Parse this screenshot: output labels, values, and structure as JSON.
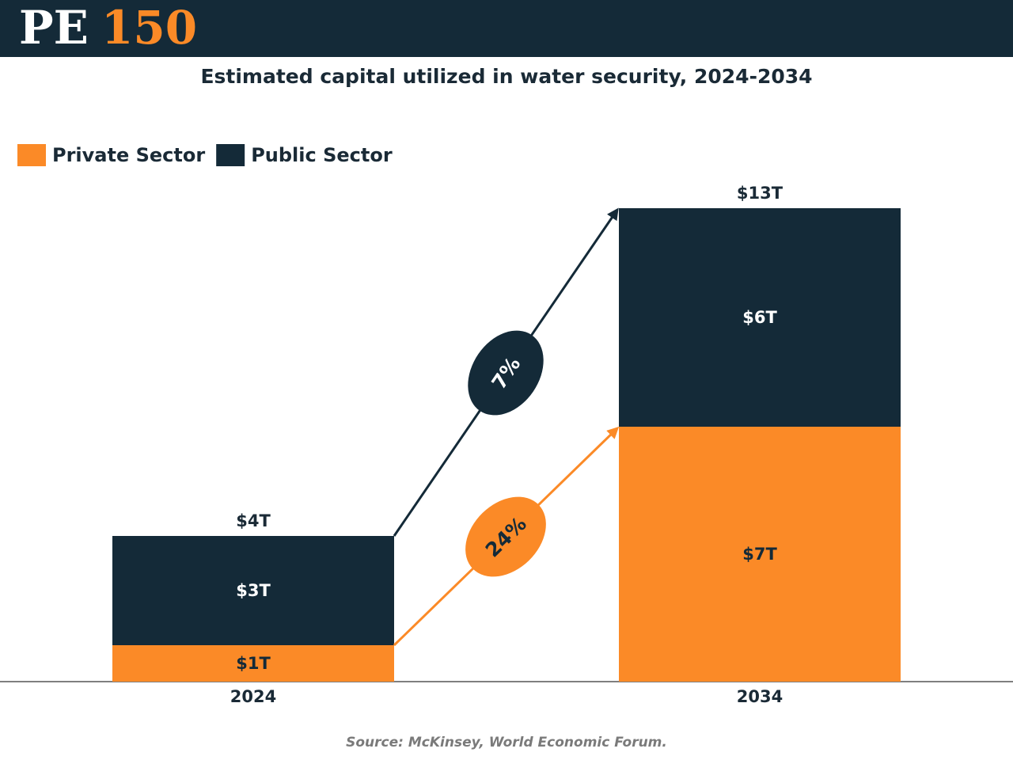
{
  "logo": {
    "left": "PE",
    "right": "150"
  },
  "chart_data": {
    "type": "stacked-bar",
    "title": "Estimated capital utilized in water security, 2024-2034",
    "categories": [
      "2024",
      "2034"
    ],
    "series": [
      {
        "name": "Private Sector",
        "color": "#fb8a27",
        "label_color": "#142a38",
        "values": [
          1,
          7
        ],
        "value_labels": [
          "$1T",
          "$7T"
        ],
        "growth": "24%"
      },
      {
        "name": "Public Sector",
        "color": "#142a38",
        "label_color": "#ffffff",
        "values": [
          3,
          6
        ],
        "value_labels": [
          "$3T",
          "$6T"
        ],
        "growth": "7%"
      }
    ],
    "totals": {
      "values": [
        4,
        13
      ],
      "value_labels": [
        "$4T",
        "$13T"
      ]
    },
    "legend": "top-left",
    "source": "Source: McKinsey, World Economic Forum."
  }
}
